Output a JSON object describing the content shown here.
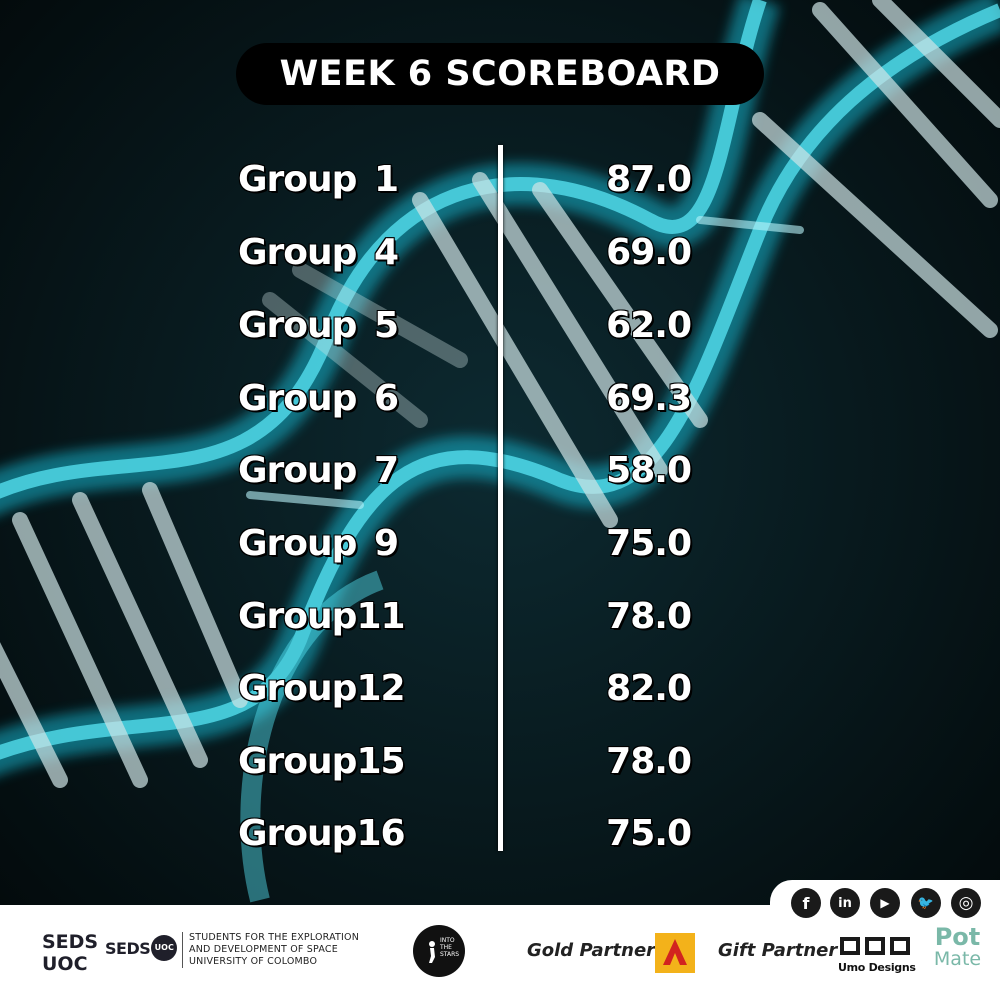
{
  "title": "WEEK 6 SCOREBOARD",
  "scoreboard": [
    {
      "group_word": "Group",
      "group_num": "1",
      "score": "87.0"
    },
    {
      "group_word": "Group",
      "group_num": "4",
      "score": "69.0"
    },
    {
      "group_word": "Group",
      "group_num": "5",
      "score": "62.0"
    },
    {
      "group_word": "Group",
      "group_num": "6",
      "score": "69.3"
    },
    {
      "group_word": "Group",
      "group_num": "7",
      "score": "58.0"
    },
    {
      "group_word": "Group",
      "group_num": "9",
      "score": "75.0"
    },
    {
      "group_word": "Group",
      "group_num": "11",
      "score": "78.0"
    },
    {
      "group_word": "Group",
      "group_num": "12",
      "score": "82.0"
    },
    {
      "group_word": "Group",
      "group_num": "15",
      "score": "78.0"
    },
    {
      "group_word": "Group",
      "group_num": "16",
      "score": "75.0"
    }
  ],
  "social": [
    {
      "icon": "facebook-icon",
      "glyph": "f"
    },
    {
      "icon": "linkedin-icon",
      "glyph": "in"
    },
    {
      "icon": "youtube-icon",
      "glyph": "▶"
    },
    {
      "icon": "twitter-icon",
      "glyph": "🐦"
    },
    {
      "icon": "instagram-icon",
      "glyph": "◎"
    }
  ],
  "footer": {
    "seds_line1": "SEDS",
    "seds_line2": "UOC",
    "logo_text": "SEDS",
    "logo_badge": "UOC",
    "desc1": "STUDENTS FOR THE EXPLORATION",
    "desc2": "AND DEVELOPMENT OF SPACE",
    "desc3": "UNIVERSITY OF COLOMBO",
    "its_text": "INTO THE STARS",
    "gold_label": "Gold Partner",
    "gift_label": "Gift Partner",
    "umo_label": "Umo Designs",
    "potmate_line1": "Pot",
    "potmate_line2": "Mate"
  },
  "colors": {
    "background": "#030b0d",
    "helix_glow": "#15c8e0",
    "pill": "#000000",
    "gold": "#f3b21a"
  }
}
